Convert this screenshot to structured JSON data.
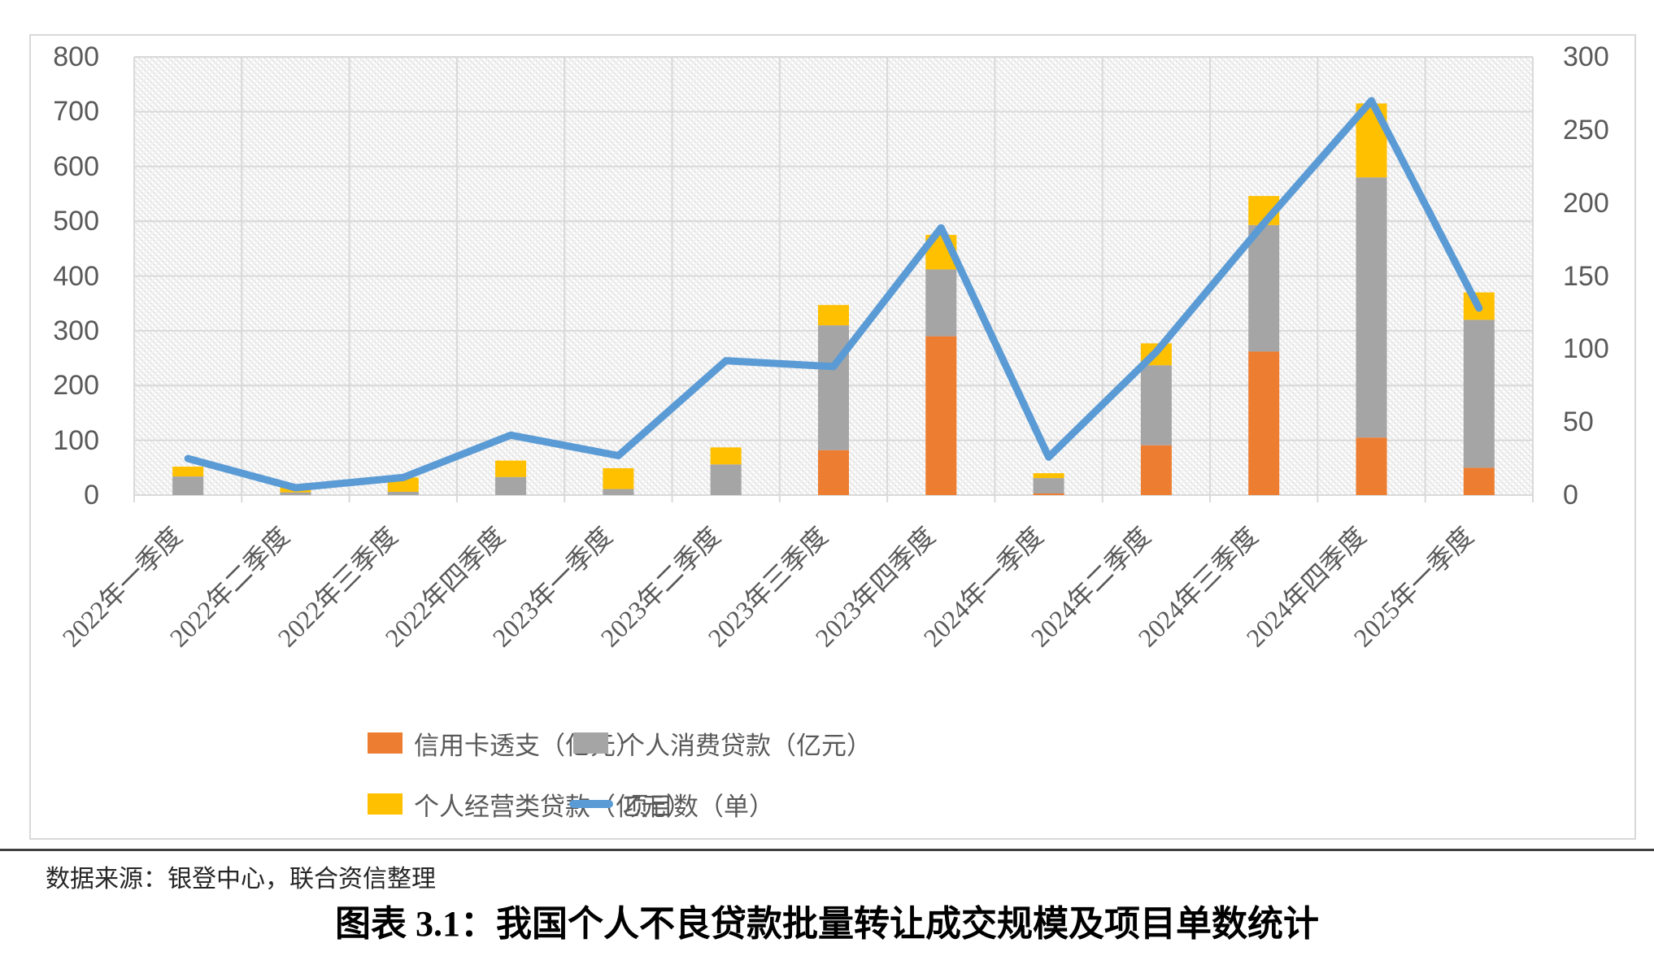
{
  "title": "图表 3.1：我国个人不良贷款批量转让成交规模及项目单数统计",
  "source_note": "数据来源：银登中心，联合资信整理",
  "colors": {
    "grid": "#D9D9D9",
    "axis_text": "#595959",
    "divider": "#404040",
    "credit_card_orange": "#ED7D31",
    "consumer_gray": "#A5A5A5",
    "business_yellow": "#FFC000",
    "projects_blue": "#5B9BD5"
  },
  "chart_data": {
    "type": "bar",
    "subtype": "stacked-bars-with-line-overlay",
    "grid": true,
    "legend_position": "bottom",
    "categories": [
      "2022年一季度",
      "2022年二季度",
      "2022年三季度",
      "2022年四季度",
      "2023年一季度",
      "2023年二季度",
      "2023年三季度",
      "2023年四季度",
      "2024年一季度",
      "2024年二季度",
      "2024年三季度",
      "2024年四季度",
      "2025年一季度"
    ],
    "series": [
      {
        "name": "信用卡透支（亿元）",
        "type": "bar",
        "axis": "left",
        "color": "#ED7D31",
        "values": [
          0,
          0,
          0,
          0,
          0,
          0,
          82,
          290,
          3,
          91,
          262,
          105,
          50
        ]
      },
      {
        "name": "个人消费贷款（亿元）",
        "type": "bar",
        "axis": "left",
        "color": "#A5A5A5",
        "values": [
          34,
          5,
          6,
          33,
          11,
          56,
          228,
          122,
          28,
          146,
          231,
          475,
          270
        ]
      },
      {
        "name": "个人经营类贷款（亿元）",
        "type": "bar",
        "axis": "left",
        "color": "#FFC000",
        "values": [
          18,
          12,
          26,
          30,
          38,
          31,
          37,
          63,
          9,
          40,
          53,
          135,
          50
        ]
      },
      {
        "name": "项目数（单）",
        "type": "line",
        "axis": "right",
        "color": "#5B9BD5",
        "values": [
          25,
          5,
          12,
          41,
          27,
          92,
          88,
          183,
          26,
          98,
          186,
          270,
          128
        ]
      }
    ],
    "left_axis": {
      "min": 0,
      "max": 800,
      "step": 100,
      "ticks": [
        0,
        100,
        200,
        300,
        400,
        500,
        600,
        700,
        800
      ]
    },
    "right_axis": {
      "min": 0,
      "max": 300,
      "step": 50,
      "ticks": [
        0,
        50,
        100,
        150,
        200,
        250,
        300
      ]
    }
  }
}
